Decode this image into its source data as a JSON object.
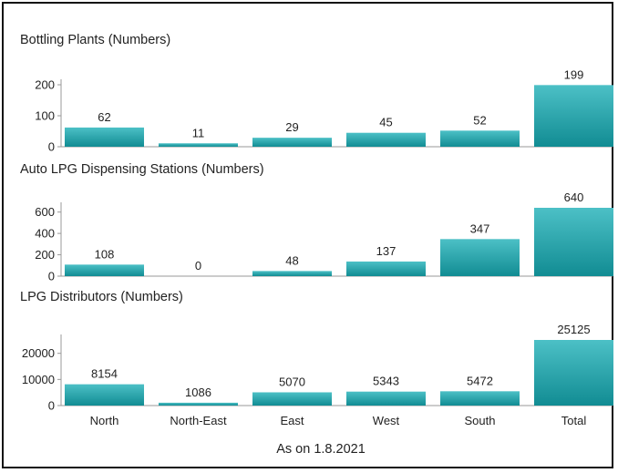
{
  "colors": {
    "bar_top": "#4cc0c6",
    "bar_bottom": "#118c93",
    "axis": "#999999",
    "text": "#222222"
  },
  "chart_data": [
    {
      "type": "bar",
      "title": "Bottling Plants (Numbers)",
      "categories": [
        "North",
        "North-East",
        "East",
        "West",
        "South",
        "Total"
      ],
      "values": [
        62,
        11,
        29,
        45,
        52,
        199
      ],
      "yticks": [
        0,
        100,
        200
      ],
      "ylim": [
        0,
        200
      ],
      "grid": false
    },
    {
      "type": "bar",
      "title": "Auto LPG Dispensing Stations (Numbers)",
      "categories": [
        "North",
        "North-East",
        "East",
        "West",
        "South",
        "Total"
      ],
      "values": [
        108,
        0,
        48,
        137,
        347,
        640
      ],
      "yticks": [
        0,
        200,
        400,
        600
      ],
      "ylim": [
        0,
        640
      ],
      "grid": false
    },
    {
      "type": "bar",
      "title": "LPG Distributors (Numbers)",
      "categories": [
        "North",
        "North-East",
        "East",
        "West",
        "South",
        "Total"
      ],
      "values": [
        8154,
        1086,
        5070,
        5343,
        5472,
        25125
      ],
      "yticks": [
        0,
        10000,
        20000
      ],
      "ylim": [
        0,
        25125
      ],
      "grid": false
    }
  ],
  "footnote": "As on 1.8.2021"
}
